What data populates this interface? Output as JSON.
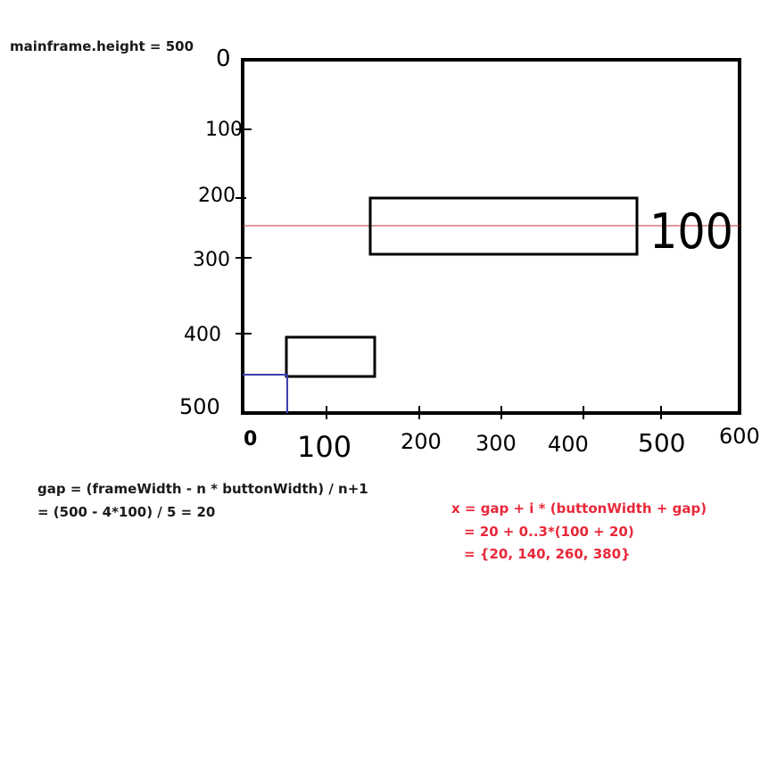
{
  "header": {
    "mainframe_label": "mainframe.height = 500"
  },
  "diagram": {
    "y_ticks": [
      "0",
      "100",
      "200",
      "300",
      "400",
      "500"
    ],
    "x_ticks": [
      "0",
      "100",
      "200",
      "300",
      "400",
      "500",
      "600"
    ],
    "box_size_label": "100"
  },
  "formulas": {
    "gap_line1": "gap = (frameWidth - n * buttonWidth) / n+1",
    "gap_line2": "= (500 - 4*100) / 5 = 20",
    "x_line1": "x = gap + i * (buttonWidth + gap)",
    "x_line2": "= 20 + 0..3*(100 + 20)",
    "x_line3": "= {20, 140, 260, 380}"
  },
  "colors": {
    "guide_red": "#c0393b",
    "marker_blue": "#3b3fb3",
    "formula_red": "#e8283a"
  }
}
